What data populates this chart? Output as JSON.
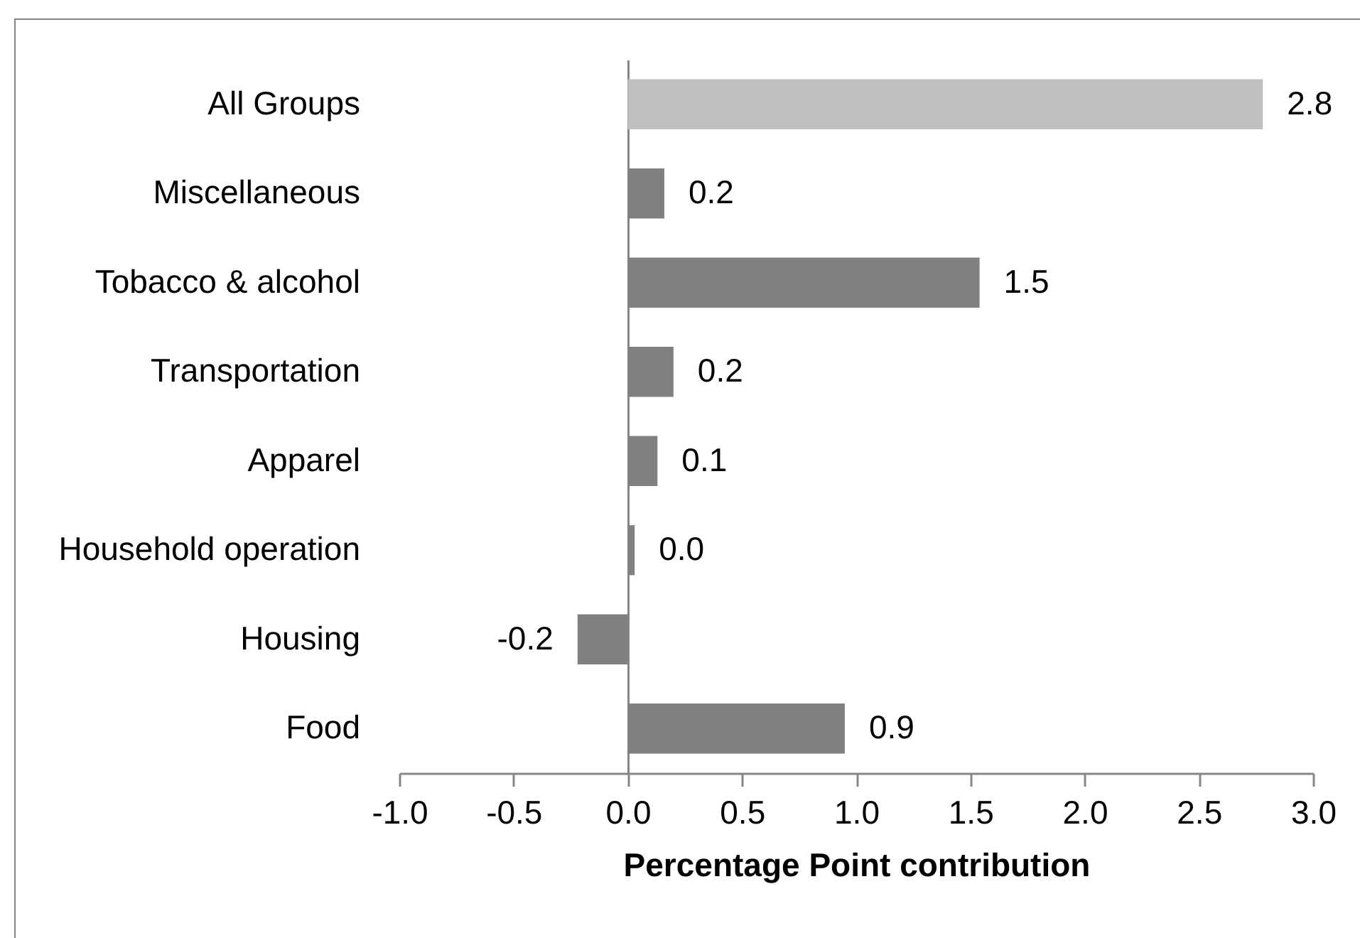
{
  "chart_data": {
    "type": "bar",
    "orientation": "horizontal",
    "categories": [
      "All Groups",
      "Miscellaneous",
      "Tobacco & alcohol",
      "Transportation",
      "Apparel",
      "Household operation",
      "Housing",
      "Food"
    ],
    "values": [
      2.78,
      0.16,
      1.54,
      0.2,
      0.13,
      0.03,
      -0.22,
      0.95
    ],
    "value_labels": [
      "2.8",
      "0.2",
      "1.5",
      "0.2",
      "0.1",
      "0.0",
      "-0.2",
      "0.9"
    ],
    "colors": [
      "#bfbfbf",
      "#808080",
      "#808080",
      "#808080",
      "#808080",
      "#808080",
      "#808080",
      "#808080"
    ],
    "xlabel": "Percentage Point contribution",
    "xlim": [
      -1,
      3
    ],
    "xticks": [
      {
        "value": -1,
        "label": "-1.0"
      },
      -0.5,
      {
        "value": 0,
        "label": "0.0"
      },
      0.5,
      {
        "value": 1,
        "label": "1.0"
      },
      1.5,
      {
        "value": 2,
        "label": "2.0"
      },
      2.5,
      {
        "value": 3,
        "label": "3.0"
      }
    ]
  }
}
